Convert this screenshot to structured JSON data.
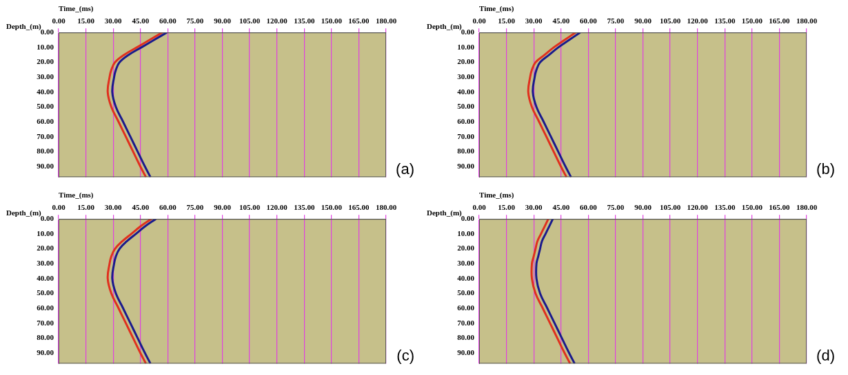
{
  "chart_data": [
    {
      "type": "line",
      "title": "(a)",
      "x_label": "Time_(ms)",
      "y_label": "Depth_(m)",
      "xlim": [
        0,
        180
      ],
      "ylim": [
        97,
        0
      ],
      "grid": "x",
      "xticks": [
        {
          "value": 0,
          "label": "0.00"
        },
        {
          "value": 15,
          "label": "15.00"
        },
        {
          "value": 30,
          "label": "30.00"
        },
        {
          "value": 45,
          "label": "45.00"
        },
        {
          "value": 60,
          "label": "60.00"
        },
        {
          "value": 75,
          "label": "75.00"
        },
        {
          "value": 90,
          "label": "90.00"
        },
        {
          "value": 105,
          "label": "105.00"
        },
        {
          "value": 120,
          "label": "120.00"
        },
        {
          "value": 135,
          "label": "135.00"
        },
        {
          "value": 150,
          "label": "150.00"
        },
        {
          "value": 165,
          "label": "165.00"
        },
        {
          "value": 180,
          "label": "180.00"
        }
      ],
      "yticks": [
        {
          "value": 0,
          "label": "0.00"
        },
        {
          "value": 10,
          "label": "10.00"
        },
        {
          "value": 20,
          "label": "20.00"
        },
        {
          "value": 30,
          "label": "30.00"
        },
        {
          "value": 40,
          "label": "40.00"
        },
        {
          "value": 50,
          "label": "50.00"
        },
        {
          "value": 60,
          "label": "60.00"
        },
        {
          "value": 70,
          "label": "70.00"
        },
        {
          "value": 80,
          "label": "80.00"
        },
        {
          "value": 90,
          "label": "90.00"
        }
      ],
      "series": [
        {
          "color": "#1a1a8c",
          "x": [
            59.5,
            52.5,
            45.5,
            38.5,
            33.5,
            31.5,
            30.5,
            29.5,
            31.5,
            35.5,
            39.5,
            43.5,
            47.5,
            50.5
          ],
          "values": [
            0,
            5,
            10,
            15,
            20,
            25,
            30,
            40,
            50,
            60,
            70,
            80,
            90,
            97
          ]
        },
        {
          "color": "#e0301e",
          "x": [
            57,
            50,
            43,
            36,
            31,
            29,
            28,
            27,
            29,
            33,
            37,
            41,
            45,
            48
          ],
          "values": [
            0,
            5,
            10,
            15,
            20,
            25,
            30,
            40,
            50,
            60,
            70,
            80,
            90,
            97
          ]
        }
      ]
    },
    {
      "type": "line",
      "title": "(b)",
      "x_label": "Time_(ms)",
      "y_label": "Depth_(m)",
      "xlim": [
        0,
        180
      ],
      "ylim": [
        97,
        0
      ],
      "grid": "x",
      "xticks": [
        {
          "value": 0,
          "label": "0.00"
        },
        {
          "value": 15,
          "label": "15.00"
        },
        {
          "value": 30,
          "label": "30.00"
        },
        {
          "value": 45,
          "label": "45.00"
        },
        {
          "value": 60,
          "label": "60.00"
        },
        {
          "value": 75,
          "label": "75.00"
        },
        {
          "value": 90,
          "label": "90.00"
        },
        {
          "value": 105,
          "label": "105.00"
        },
        {
          "value": 120,
          "label": "120.00"
        },
        {
          "value": 135,
          "label": "135.00"
        },
        {
          "value": 150,
          "label": "150.00"
        },
        {
          "value": 165,
          "label": "165.00"
        },
        {
          "value": 180,
          "label": "180.00"
        }
      ],
      "yticks": [
        {
          "value": 0,
          "label": "0.00"
        },
        {
          "value": 10,
          "label": "10.00"
        },
        {
          "value": 20,
          "label": "20.00"
        },
        {
          "value": 30,
          "label": "30.00"
        },
        {
          "value": 40,
          "label": "40.00"
        },
        {
          "value": 50,
          "label": "50.00"
        },
        {
          "value": 60,
          "label": "60.00"
        },
        {
          "value": 70,
          "label": "70.00"
        },
        {
          "value": 80,
          "label": "80.00"
        },
        {
          "value": 90,
          "label": "90.00"
        }
      ],
      "series": [
        {
          "color": "#1a1a8c",
          "x": [
            55.5,
            49.5,
            43.5,
            38.5,
            33.5,
            31.5,
            30.5,
            29.5,
            31.5,
            35.5,
            39.5,
            43.5,
            47.5,
            50.5
          ],
          "values": [
            0,
            5,
            10,
            15,
            20,
            25,
            30,
            40,
            50,
            60,
            70,
            80,
            90,
            97
          ]
        },
        {
          "color": "#e0301e",
          "x": [
            53,
            47,
            41,
            36,
            31,
            29,
            28,
            27,
            29,
            33,
            37,
            41,
            45,
            48
          ],
          "values": [
            0,
            5,
            10,
            15,
            20,
            25,
            30,
            40,
            50,
            60,
            70,
            80,
            90,
            97
          ]
        }
      ]
    },
    {
      "type": "line",
      "title": "(c)",
      "x_label": "Time_(ms)",
      "y_label": "Depth_(m)",
      "xlim": [
        0,
        180
      ],
      "ylim": [
        97,
        0
      ],
      "grid": "x",
      "xticks": [
        {
          "value": 0,
          "label": "0.00"
        },
        {
          "value": 15,
          "label": "15.00"
        },
        {
          "value": 30,
          "label": "30.00"
        },
        {
          "value": 45,
          "label": "45.00"
        },
        {
          "value": 60,
          "label": "60.00"
        },
        {
          "value": 75,
          "label": "75.00"
        },
        {
          "value": 90,
          "label": "90.00"
        },
        {
          "value": 105,
          "label": "105.00"
        },
        {
          "value": 120,
          "label": "120.00"
        },
        {
          "value": 135,
          "label": "135.00"
        },
        {
          "value": 150,
          "label": "150.00"
        },
        {
          "value": 165,
          "label": "165.00"
        },
        {
          "value": 180,
          "label": "180.00"
        }
      ],
      "yticks": [
        {
          "value": 0,
          "label": "0.00"
        },
        {
          "value": 10,
          "label": "10.00"
        },
        {
          "value": 20,
          "label": "20.00"
        },
        {
          "value": 30,
          "label": "30.00"
        },
        {
          "value": 40,
          "label": "40.00"
        },
        {
          "value": 50,
          "label": "50.00"
        },
        {
          "value": 60,
          "label": "60.00"
        },
        {
          "value": 70,
          "label": "70.00"
        },
        {
          "value": 80,
          "label": "80.00"
        },
        {
          "value": 90,
          "label": "90.00"
        }
      ],
      "series": [
        {
          "color": "#1a1a8c",
          "x": [
            53.5,
            47.5,
            42.5,
            37.5,
            33.5,
            31.5,
            30.5,
            29.5,
            31.5,
            35.5,
            39.5,
            43.5,
            47.5,
            50.5
          ],
          "values": [
            0,
            5,
            10,
            15,
            20,
            25,
            30,
            40,
            50,
            60,
            70,
            80,
            90,
            97
          ]
        },
        {
          "color": "#e0301e",
          "x": [
            51,
            45,
            40,
            35,
            31,
            29,
            28,
            27,
            29,
            33,
            37,
            41,
            45,
            48
          ],
          "values": [
            0,
            5,
            10,
            15,
            20,
            25,
            30,
            40,
            50,
            60,
            70,
            80,
            90,
            97
          ]
        }
      ]
    },
    {
      "type": "line",
      "title": "(d)",
      "x_label": "Time_(ms)",
      "y_label": "Depth_(m)",
      "xlim": [
        0,
        180
      ],
      "ylim": [
        97,
        0
      ],
      "grid": "x",
      "xticks": [
        {
          "value": 0,
          "label": "0.00"
        },
        {
          "value": 15,
          "label": "15.00"
        },
        {
          "value": 30,
          "label": "30.00"
        },
        {
          "value": 45,
          "label": "45.00"
        },
        {
          "value": 60,
          "label": "60.00"
        },
        {
          "value": 75,
          "label": "75.00"
        },
        {
          "value": 90,
          "label": "90.00"
        },
        {
          "value": 105,
          "label": "105.00"
        },
        {
          "value": 120,
          "label": "120.00"
        },
        {
          "value": 135,
          "label": "135.00"
        },
        {
          "value": 150,
          "label": "150.00"
        },
        {
          "value": 165,
          "label": "165.00"
        },
        {
          "value": 180,
          "label": "180.00"
        }
      ],
      "yticks": [
        {
          "value": 0,
          "label": "0.00"
        },
        {
          "value": 10,
          "label": "10.00"
        },
        {
          "value": 20,
          "label": "20.00"
        },
        {
          "value": 30,
          "label": "30.00"
        },
        {
          "value": 40,
          "label": "40.00"
        },
        {
          "value": 50,
          "label": "50.00"
        },
        {
          "value": 60,
          "label": "60.00"
        },
        {
          "value": 70,
          "label": "70.00"
        },
        {
          "value": 80,
          "label": "80.00"
        },
        {
          "value": 90,
          "label": "90.00"
        }
      ],
      "series": [
        {
          "color": "#1a1a8c",
          "x": [
            40.5,
            38.5,
            36.5,
            34.5,
            33.5,
            32.5,
            31.5,
            31.5,
            33.5,
            37.5,
            41.5,
            45.5,
            49.5,
            52.5
          ],
          "values": [
            0,
            5,
            10,
            15,
            20,
            25,
            30,
            40,
            50,
            60,
            70,
            80,
            90,
            97
          ]
        },
        {
          "color": "#e0301e",
          "x": [
            38,
            36,
            34,
            32,
            31,
            30,
            29,
            29,
            31,
            35,
            39,
            43,
            47,
            50
          ],
          "values": [
            0,
            5,
            10,
            15,
            20,
            25,
            30,
            40,
            50,
            60,
            70,
            80,
            90,
            97
          ]
        }
      ]
    }
  ]
}
